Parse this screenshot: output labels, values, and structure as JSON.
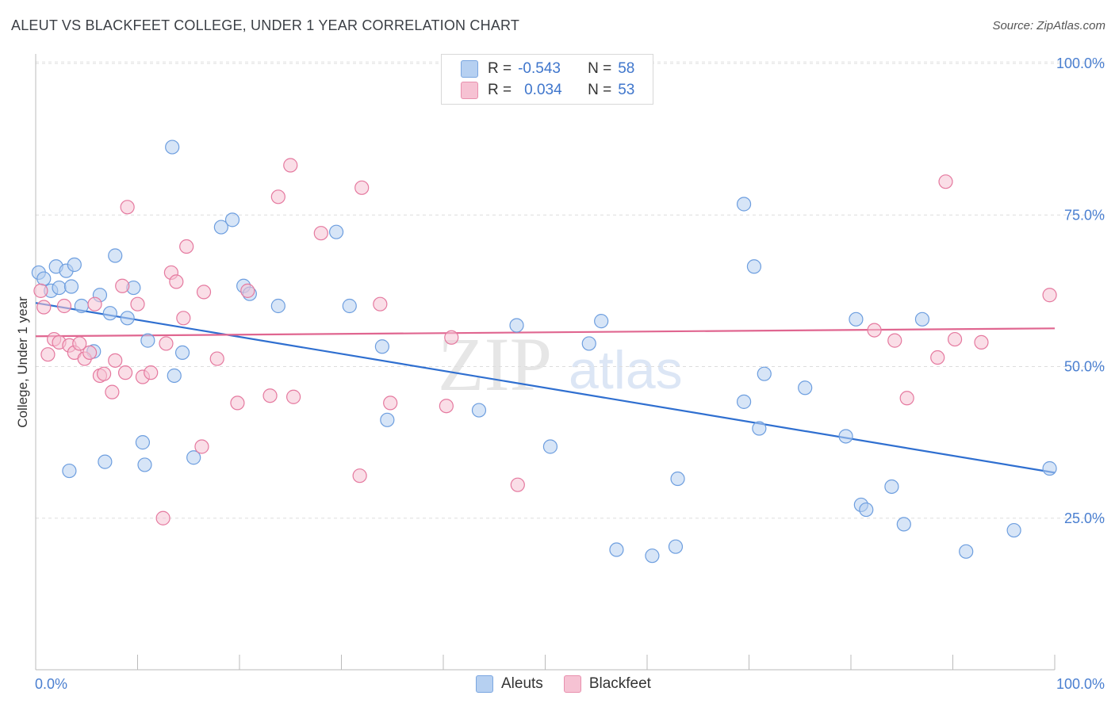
{
  "title": "ALEUT VS BLACKFEET COLLEGE, UNDER 1 YEAR CORRELATION CHART",
  "source": "Source: ZipAtlas.com",
  "watermark": {
    "zip": "ZIP",
    "atlas": "atlas"
  },
  "legend": {
    "rows": [
      {
        "r_label": "R =",
        "r_value": "-0.543",
        "n_label": "N =",
        "n_value": "58",
        "color": "#9dc3f0"
      },
      {
        "r_label": "R =",
        "r_value": "0.034",
        "n_label": "N =",
        "n_value": "53",
        "color": "#f6b8cb"
      }
    ]
  },
  "bottom_legend": {
    "series1": "Aleuts",
    "series2": "Blackfeet"
  },
  "chart_data": {
    "type": "scatter",
    "title": "ALEUT VS BLACKFEET COLLEGE, UNDER 1 YEAR CORRELATION CHART",
    "xlabel": "",
    "ylabel": "College, Under 1 year",
    "x_ticks": [
      "0.0%",
      "100.0%"
    ],
    "y_ticks": [
      "25.0%",
      "50.0%",
      "75.0%",
      "100.0%"
    ],
    "xlim": [
      0,
      100
    ],
    "ylim": [
      0,
      100
    ],
    "grid": "horizontal dashed",
    "legend_position": "top-center",
    "series": [
      {
        "name": "Aleuts",
        "color": "#6d9edf",
        "fill": "#b6d0f1",
        "R": -0.543,
        "N": 58,
        "trend": [
          [
            0,
            60.5
          ],
          [
            100,
            32.5
          ]
        ],
        "points": [
          [
            0.3,
            65.5
          ],
          [
            0.8,
            64.5
          ],
          [
            1.5,
            62.5
          ],
          [
            2.0,
            66.5
          ],
          [
            2.3,
            63.0
          ],
          [
            3.0,
            65.8
          ],
          [
            3.5,
            63.2
          ],
          [
            3.8,
            66.8
          ],
          [
            4.5,
            60.0
          ],
          [
            5.7,
            52.5
          ],
          [
            6.3,
            61.8
          ],
          [
            7.3,
            58.8
          ],
          [
            7.8,
            68.3
          ],
          [
            9.0,
            58.0
          ],
          [
            9.6,
            63.0
          ],
          [
            10.5,
            37.5
          ],
          [
            10.7,
            33.8
          ],
          [
            11.0,
            54.3
          ],
          [
            13.4,
            86.2
          ],
          [
            13.6,
            48.5
          ],
          [
            14.4,
            52.3
          ],
          [
            15.5,
            35.0
          ],
          [
            18.2,
            73.0
          ],
          [
            19.3,
            74.2
          ],
          [
            20.4,
            63.3
          ],
          [
            21.0,
            62.0
          ],
          [
            23.8,
            60.0
          ],
          [
            29.5,
            72.2
          ],
          [
            30.8,
            60.0
          ],
          [
            34.0,
            53.3
          ],
          [
            34.5,
            41.2
          ],
          [
            43.5,
            42.8
          ],
          [
            47.2,
            56.8
          ],
          [
            50.5,
            36.8
          ],
          [
            54.3,
            53.8
          ],
          [
            55.5,
            57.5
          ],
          [
            57.0,
            19.8
          ],
          [
            60.5,
            18.8
          ],
          [
            62.8,
            20.3
          ],
          [
            63.0,
            31.5
          ],
          [
            69.5,
            44.2
          ],
          [
            69.5,
            76.8
          ],
          [
            70.5,
            66.5
          ],
          [
            71.0,
            39.8
          ],
          [
            71.5,
            48.8
          ],
          [
            75.5,
            46.5
          ],
          [
            79.5,
            38.5
          ],
          [
            80.5,
            57.8
          ],
          [
            81.0,
            27.2
          ],
          [
            81.5,
            26.4
          ],
          [
            84.0,
            30.2
          ],
          [
            85.2,
            24.0
          ],
          [
            87.0,
            57.8
          ],
          [
            91.3,
            19.5
          ],
          [
            96.0,
            23.0
          ],
          [
            99.5,
            33.2
          ],
          [
            3.3,
            32.8
          ],
          [
            6.8,
            34.3
          ]
        ]
      },
      {
        "name": "Blackfeet",
        "color": "#e5799f",
        "fill": "#f6c2d3",
        "R": 0.034,
        "N": 53,
        "trend": [
          [
            0,
            55.0
          ],
          [
            100,
            56.3
          ]
        ],
        "points": [
          [
            0.5,
            62.5
          ],
          [
            0.8,
            59.8
          ],
          [
            1.2,
            52.0
          ],
          [
            1.8,
            54.5
          ],
          [
            2.3,
            54.0
          ],
          [
            2.8,
            60.0
          ],
          [
            3.3,
            53.5
          ],
          [
            3.8,
            52.3
          ],
          [
            4.3,
            53.8
          ],
          [
            4.8,
            51.3
          ],
          [
            5.3,
            52.3
          ],
          [
            5.8,
            60.3
          ],
          [
            6.3,
            48.5
          ],
          [
            6.7,
            48.8
          ],
          [
            7.5,
            45.8
          ],
          [
            7.8,
            51.0
          ],
          [
            8.5,
            63.3
          ],
          [
            8.8,
            49.0
          ],
          [
            9.0,
            76.3
          ],
          [
            10.0,
            60.3
          ],
          [
            10.5,
            48.3
          ],
          [
            11.3,
            49.0
          ],
          [
            12.5,
            25.0
          ],
          [
            12.8,
            53.8
          ],
          [
            13.3,
            65.5
          ],
          [
            13.8,
            64.0
          ],
          [
            14.5,
            58.0
          ],
          [
            14.8,
            69.8
          ],
          [
            16.3,
            36.8
          ],
          [
            16.5,
            62.3
          ],
          [
            17.8,
            51.3
          ],
          [
            19.8,
            44.0
          ],
          [
            20.8,
            62.5
          ],
          [
            23.0,
            45.2
          ],
          [
            23.8,
            78.0
          ],
          [
            25.0,
            83.2
          ],
          [
            25.3,
            45.0
          ],
          [
            28.0,
            72.0
          ],
          [
            31.8,
            32.0
          ],
          [
            32.0,
            79.5
          ],
          [
            33.8,
            60.3
          ],
          [
            34.8,
            44.0
          ],
          [
            40.3,
            43.5
          ],
          [
            40.8,
            54.8
          ],
          [
            47.3,
            30.5
          ],
          [
            82.3,
            56.0
          ],
          [
            84.3,
            54.3
          ],
          [
            85.5,
            44.8
          ],
          [
            88.5,
            51.5
          ],
          [
            89.3,
            80.5
          ],
          [
            90.2,
            54.5
          ],
          [
            92.8,
            54.0
          ],
          [
            99.5,
            61.8
          ]
        ]
      }
    ]
  }
}
